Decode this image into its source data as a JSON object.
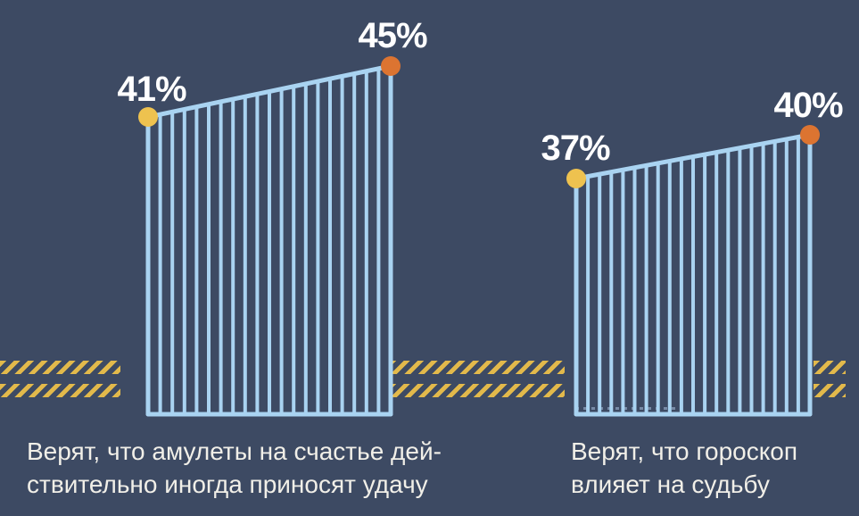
{
  "background_color": "#3d4a63",
  "colors": {
    "background": "#3d4a63",
    "fence_line": "#a9d3f1",
    "start_dot": "#eec24f",
    "end_dot": "#dc7431",
    "hatch": "#e2b94b",
    "value_text": "#ffffff",
    "caption_text": "#f1efe8"
  },
  "chart_data": {
    "type": "line",
    "title": "",
    "legend": "none",
    "groups": [
      {
        "start_value": 41,
        "end_value": 45,
        "start_label": "41%",
        "end_label": "45%",
        "caption_lines": [
          "Верят, что амулеты на счастье дей-",
          "ствительно иногда приносят удачу"
        ]
      },
      {
        "start_value": 37,
        "end_value": 40,
        "start_label": "37%",
        "end_label": "40%",
        "caption_lines": [
          "Верят, что гороскоп",
          "влияет на судьбу"
        ]
      }
    ]
  }
}
